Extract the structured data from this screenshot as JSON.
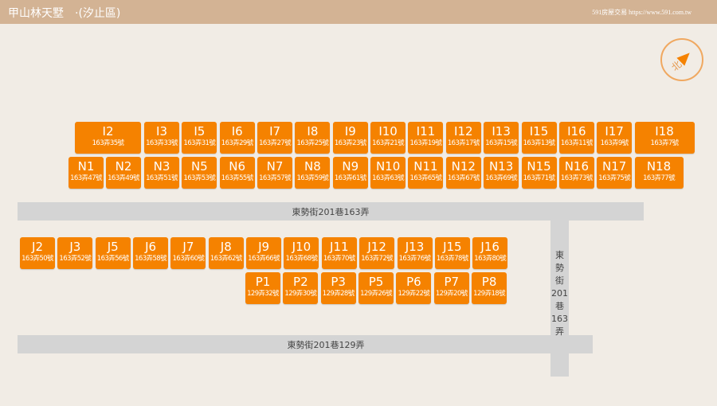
{
  "header": {
    "title": "甲山林天墅　·(汐止區)",
    "brand": "591房屋交易 https://www.591.com.tw"
  },
  "compass": {
    "label": "北",
    "icon": "north-arrow-icon"
  },
  "roads": {
    "road_163": "東勢街201巷163弄",
    "road_129": "東勢街201巷129弄",
    "vertical": [
      "東",
      "勢",
      "街",
      "201",
      "巷",
      "163",
      "弄"
    ]
  },
  "colors": {
    "unit": "#f58200",
    "road": "#d4d4d4",
    "header": "#d3b394",
    "background": "#f1ece5"
  },
  "rows": {
    "I": [
      [
        "I2",
        "163弄35號"
      ],
      [
        "I3",
        "163弄33號"
      ],
      [
        "I5",
        "163弄31號"
      ],
      [
        "I6",
        "163弄29號"
      ],
      [
        "I7",
        "163弄27號"
      ],
      [
        "I8",
        "163弄25號"
      ],
      [
        "I9",
        "163弄23號"
      ],
      [
        "I10",
        "163弄21號"
      ],
      [
        "I11",
        "163弄19號"
      ],
      [
        "I12",
        "163弄17號"
      ],
      [
        "I13",
        "163弄15號"
      ],
      [
        "I15",
        "163弄13號"
      ],
      [
        "I16",
        "163弄11號"
      ],
      [
        "I17",
        "163弄9號"
      ],
      [
        "I18",
        "163弄7號"
      ]
    ],
    "N": [
      [
        "N1",
        "163弄47號"
      ],
      [
        "N2",
        "163弄49號"
      ],
      [
        "N3",
        "163弄51號"
      ],
      [
        "N5",
        "163弄53號"
      ],
      [
        "N6",
        "163弄55號"
      ],
      [
        "N7",
        "163弄57號"
      ],
      [
        "N8",
        "163弄59號"
      ],
      [
        "N9",
        "163弄61號"
      ],
      [
        "N10",
        "163弄63號"
      ],
      [
        "N11",
        "163弄65號"
      ],
      [
        "N12",
        "163弄67號"
      ],
      [
        "N13",
        "163弄69號"
      ],
      [
        "N15",
        "163弄71號"
      ],
      [
        "N16",
        "163弄73號"
      ],
      [
        "N17",
        "163弄75號"
      ],
      [
        "N18",
        "163弄77號"
      ]
    ],
    "J": [
      [
        "J2",
        "163弄50號"
      ],
      [
        "J3",
        "163弄52號"
      ],
      [
        "J5",
        "163弄56號"
      ],
      [
        "J6",
        "163弄58號"
      ],
      [
        "J7",
        "163弄60號"
      ],
      [
        "J8",
        "163弄62號"
      ],
      [
        "J9",
        "163弄66號"
      ],
      [
        "J10",
        "163弄68號"
      ],
      [
        "J11",
        "163弄70號"
      ],
      [
        "J12",
        "163弄72號"
      ],
      [
        "J13",
        "163弄76號"
      ],
      [
        "J15",
        "163弄78號"
      ],
      [
        "J16",
        "163弄80號"
      ]
    ],
    "P": [
      [
        "P1",
        "129弄32號"
      ],
      [
        "P2",
        "129弄30號"
      ],
      [
        "P3",
        "129弄28號"
      ],
      [
        "P5",
        "129弄26號"
      ],
      [
        "P6",
        "129弄22號"
      ],
      [
        "P7",
        "129弄20號"
      ],
      [
        "P8",
        "129弄18號"
      ]
    ]
  }
}
